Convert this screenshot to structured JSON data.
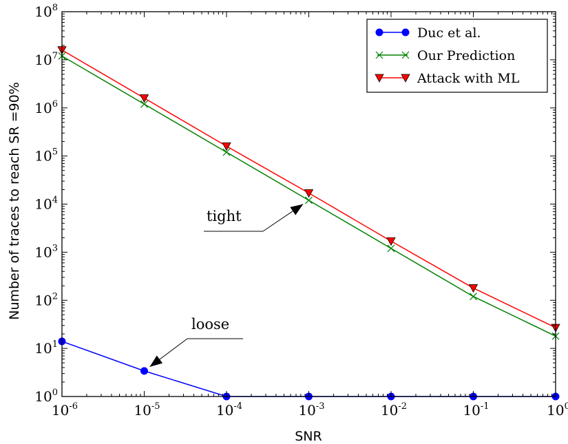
{
  "chart_data": {
    "type": "line",
    "xlabel": "SNR",
    "ylabel": "Number of traces to reach SR =90%",
    "xscale": "log",
    "yscale": "log",
    "xlim": [
      1e-06,
      1
    ],
    "ylim": [
      1,
      100000000.0
    ],
    "x_ticks": [
      {
        "base": "10",
        "exp": "-6"
      },
      {
        "base": "10",
        "exp": "-5"
      },
      {
        "base": "10",
        "exp": "-4"
      },
      {
        "base": "10",
        "exp": "-3"
      },
      {
        "base": "10",
        "exp": "-2"
      },
      {
        "base": "10",
        "exp": "-1"
      },
      {
        "base": "10",
        "exp": "0"
      }
    ],
    "y_ticks": [
      {
        "base": "10",
        "exp": "0"
      },
      {
        "base": "10",
        "exp": "1"
      },
      {
        "base": "10",
        "exp": "2"
      },
      {
        "base": "10",
        "exp": "3"
      },
      {
        "base": "10",
        "exp": "4"
      },
      {
        "base": "10",
        "exp": "5"
      },
      {
        "base": "10",
        "exp": "6"
      },
      {
        "base": "10",
        "exp": "7"
      },
      {
        "base": "10",
        "exp": "8"
      }
    ],
    "x": [
      1e-06,
      1e-05,
      0.0001,
      0.001,
      0.01,
      0.1,
      1
    ],
    "series": [
      {
        "name": "Duc et al.",
        "color": "#0000ff",
        "marker": "circle",
        "values": [
          14,
          3.4,
          1,
          1,
          1,
          1,
          1
        ]
      },
      {
        "name": "Our Prediction",
        "color": "#008000",
        "marker": "x",
        "values": [
          12000000,
          1200000,
          120000,
          12000,
          1200,
          120,
          18
        ]
      },
      {
        "name": "Attack with ML",
        "color": "#ff0000",
        "marker": "triangle-down",
        "values": [
          16000000,
          1600000,
          160000,
          17000,
          1700,
          180,
          27
        ]
      }
    ],
    "legend_position": "top-right",
    "grid": false,
    "annotations": [
      {
        "text": "tight",
        "target": {
          "x": 0.001,
          "y": 12000
        }
      },
      {
        "text": "loose",
        "target": {
          "x": 1e-05,
          "y": 3.4
        }
      }
    ]
  }
}
